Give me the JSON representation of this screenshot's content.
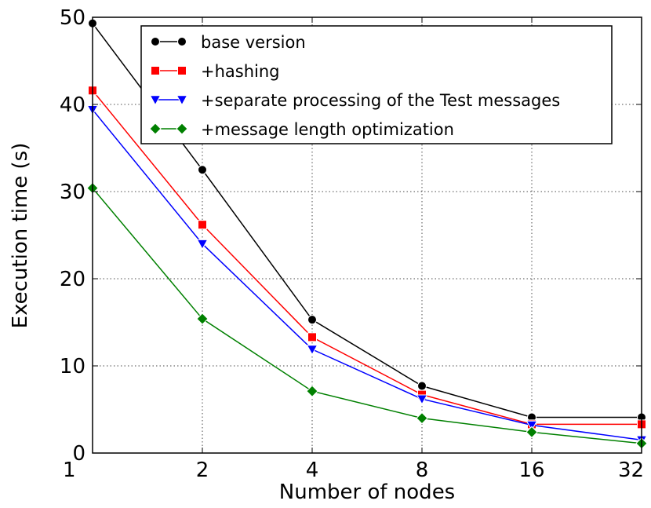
{
  "chart_data": {
    "type": "line",
    "title": "",
    "xlabel": "Number of nodes",
    "ylabel": "Execution time (s)",
    "categories": [
      "1",
      "2",
      "4",
      "8",
      "16",
      "32"
    ],
    "ylim": [
      0,
      50
    ],
    "yticks": [
      0,
      10,
      20,
      30,
      40,
      50
    ],
    "grid": true,
    "legend_position": "top-right",
    "series": [
      {
        "name": "base version",
        "color": "#000000",
        "marker": "circle",
        "values": [
          49.3,
          32.5,
          15.3,
          7.7,
          4.1,
          4.1
        ]
      },
      {
        "name": "+hashing",
        "color": "#ff0000",
        "marker": "square",
        "values": [
          41.6,
          26.2,
          13.3,
          6.7,
          3.3,
          3.3
        ]
      },
      {
        "name": "+separate processing of the Test messages",
        "color": "#0000ff",
        "marker": "triangle-down",
        "values": [
          39.4,
          24.0,
          11.9,
          6.2,
          3.2,
          1.5
        ]
      },
      {
        "name": "+message length optimization",
        "color": "#008000",
        "marker": "diamond",
        "values": [
          30.4,
          15.4,
          7.1,
          4.0,
          2.4,
          1.1
        ]
      }
    ]
  }
}
